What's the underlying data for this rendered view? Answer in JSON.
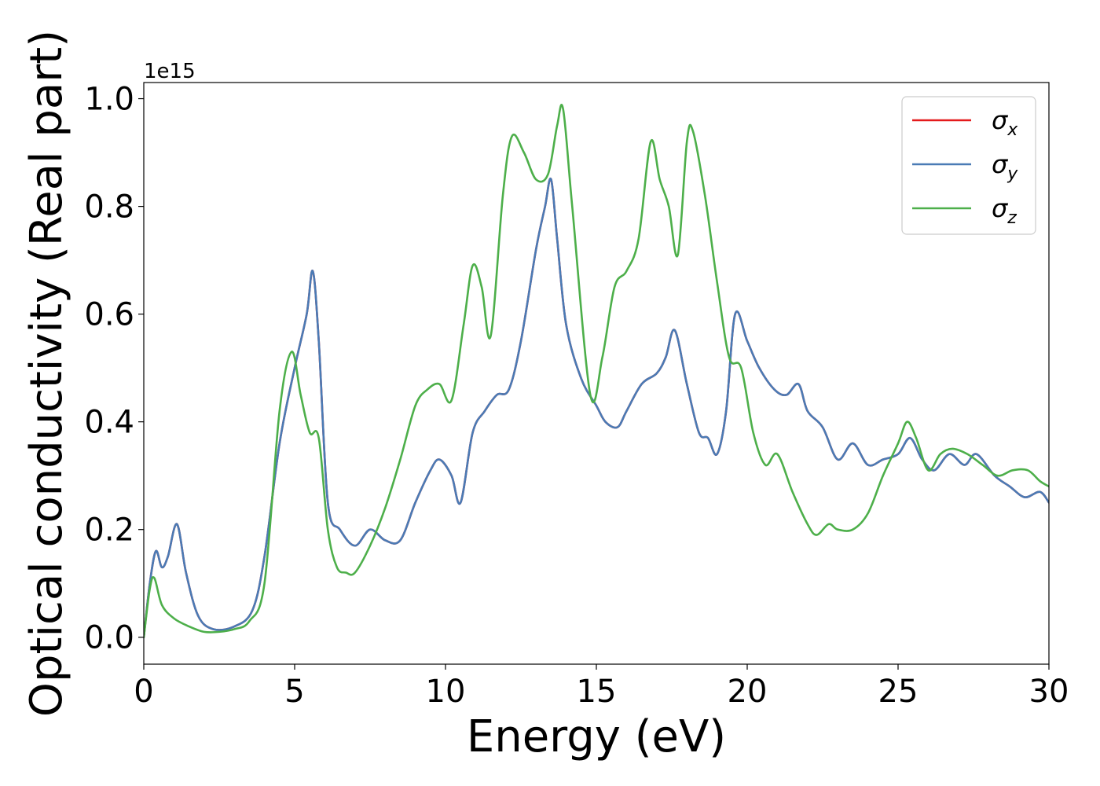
{
  "chart_data": {
    "type": "line",
    "xlabel": "Energy (eV)",
    "ylabel": "Optical conductivity (Real part)",
    "y_offset_label": "1e15",
    "xlim": [
      0,
      30
    ],
    "ylim": [
      -0.05,
      1.03
    ],
    "x_ticks": [
      0,
      5,
      10,
      15,
      20,
      25,
      30
    ],
    "x_tick_labels": [
      "0",
      "5",
      "10",
      "15",
      "20",
      "25",
      "30"
    ],
    "y_ticks": [
      0.0,
      0.2,
      0.4,
      0.6,
      0.8,
      1.0
    ],
    "y_tick_labels": [
      "0.0",
      "0.2",
      "0.4",
      "0.6",
      "0.8",
      "1.0"
    ],
    "grid": false,
    "legend_position": "top-right",
    "series": [
      {
        "name": "σ_x",
        "legend_symbol": "σ",
        "legend_subscript": "x",
        "color": "#e41a1c",
        "x": [
          0,
          0.2,
          0.4,
          0.6,
          0.8,
          1.1,
          1.4,
          1.8,
          2.3,
          3.0,
          3.6,
          4.0,
          4.5,
          5.0,
          5.4,
          5.6,
          5.8,
          6.1,
          6.5,
          7.0,
          7.5,
          8.0,
          8.5,
          9.0,
          9.5,
          9.8,
          10.2,
          10.5,
          10.9,
          11.3,
          11.7,
          12.1,
          12.5,
          13.0,
          13.3,
          13.5,
          13.7,
          14.0,
          14.5,
          15.0,
          15.3,
          15.7,
          16.0,
          16.5,
          17.0,
          17.3,
          17.6,
          18.0,
          18.4,
          18.7,
          19.0,
          19.3,
          19.6,
          20.0,
          20.4,
          20.9,
          21.3,
          21.7,
          22.0,
          22.5,
          23.0,
          23.5,
          24.0,
          24.5,
          25.0,
          25.4,
          25.8,
          26.2,
          26.7,
          27.2,
          27.6,
          28.2,
          28.7,
          29.2,
          29.7,
          30.0
        ],
        "values": [
          0.0,
          0.1,
          0.16,
          0.13,
          0.15,
          0.21,
          0.12,
          0.04,
          0.015,
          0.02,
          0.05,
          0.15,
          0.36,
          0.5,
          0.6,
          0.68,
          0.55,
          0.25,
          0.2,
          0.17,
          0.2,
          0.18,
          0.18,
          0.25,
          0.31,
          0.33,
          0.3,
          0.25,
          0.38,
          0.42,
          0.45,
          0.46,
          0.55,
          0.72,
          0.8,
          0.85,
          0.74,
          0.58,
          0.48,
          0.43,
          0.4,
          0.39,
          0.42,
          0.47,
          0.49,
          0.52,
          0.57,
          0.47,
          0.38,
          0.37,
          0.34,
          0.42,
          0.6,
          0.55,
          0.5,
          0.46,
          0.45,
          0.47,
          0.42,
          0.39,
          0.33,
          0.36,
          0.32,
          0.33,
          0.34,
          0.37,
          0.33,
          0.31,
          0.34,
          0.32,
          0.34,
          0.3,
          0.28,
          0.26,
          0.27,
          0.25
        ]
      },
      {
        "name": "σ_y",
        "legend_symbol": "σ",
        "legend_subscript": "y",
        "color": "#4a7bb5",
        "x": [
          0,
          0.2,
          0.4,
          0.6,
          0.8,
          1.1,
          1.4,
          1.8,
          2.3,
          3.0,
          3.6,
          4.0,
          4.5,
          5.0,
          5.4,
          5.6,
          5.8,
          6.1,
          6.5,
          7.0,
          7.5,
          8.0,
          8.5,
          9.0,
          9.5,
          9.8,
          10.2,
          10.5,
          10.9,
          11.3,
          11.7,
          12.1,
          12.5,
          13.0,
          13.3,
          13.5,
          13.7,
          14.0,
          14.5,
          15.0,
          15.3,
          15.7,
          16.0,
          16.5,
          17.0,
          17.3,
          17.6,
          18.0,
          18.4,
          18.7,
          19.0,
          19.3,
          19.6,
          20.0,
          20.4,
          20.9,
          21.3,
          21.7,
          22.0,
          22.5,
          23.0,
          23.5,
          24.0,
          24.5,
          25.0,
          25.4,
          25.8,
          26.2,
          26.7,
          27.2,
          27.6,
          28.2,
          28.7,
          29.2,
          29.7,
          30.0
        ],
        "values": [
          0.0,
          0.1,
          0.16,
          0.13,
          0.15,
          0.21,
          0.12,
          0.04,
          0.015,
          0.02,
          0.05,
          0.15,
          0.36,
          0.5,
          0.6,
          0.68,
          0.55,
          0.25,
          0.2,
          0.17,
          0.2,
          0.18,
          0.18,
          0.25,
          0.31,
          0.33,
          0.3,
          0.25,
          0.38,
          0.42,
          0.45,
          0.46,
          0.55,
          0.72,
          0.8,
          0.85,
          0.74,
          0.58,
          0.48,
          0.43,
          0.4,
          0.39,
          0.42,
          0.47,
          0.49,
          0.52,
          0.57,
          0.47,
          0.38,
          0.37,
          0.34,
          0.42,
          0.6,
          0.55,
          0.5,
          0.46,
          0.45,
          0.47,
          0.42,
          0.39,
          0.33,
          0.36,
          0.32,
          0.33,
          0.34,
          0.37,
          0.33,
          0.31,
          0.34,
          0.32,
          0.34,
          0.3,
          0.28,
          0.26,
          0.27,
          0.25
        ]
      },
      {
        "name": "σ_z",
        "legend_symbol": "σ",
        "legend_subscript": "z",
        "color": "#4daf4a",
        "x": [
          0,
          0.2,
          0.35,
          0.6,
          1.0,
          1.5,
          2.0,
          2.5,
          3.0,
          3.5,
          4.0,
          4.5,
          4.9,
          5.2,
          5.5,
          5.8,
          6.1,
          6.4,
          6.7,
          7.0,
          7.5,
          8.0,
          8.5,
          9.0,
          9.4,
          9.8,
          10.2,
          10.6,
          10.9,
          11.2,
          11.5,
          11.9,
          12.2,
          12.6,
          13.0,
          13.4,
          13.7,
          13.9,
          14.2,
          14.8,
          15.2,
          15.6,
          16.0,
          16.4,
          16.8,
          17.1,
          17.4,
          17.7,
          18.0,
          18.2,
          18.6,
          19.0,
          19.4,
          19.8,
          20.2,
          20.6,
          21.0,
          21.5,
          22.0,
          22.3,
          22.7,
          23.0,
          23.5,
          24.0,
          24.5,
          25.0,
          25.3,
          25.6,
          26.0,
          26.4,
          26.8,
          27.3,
          27.8,
          28.3,
          28.8,
          29.3,
          29.7,
          30.0
        ],
        "values": [
          0.0,
          0.09,
          0.11,
          0.06,
          0.035,
          0.02,
          0.01,
          0.01,
          0.015,
          0.03,
          0.1,
          0.42,
          0.53,
          0.45,
          0.38,
          0.37,
          0.2,
          0.13,
          0.12,
          0.12,
          0.17,
          0.24,
          0.33,
          0.43,
          0.46,
          0.47,
          0.44,
          0.58,
          0.69,
          0.65,
          0.56,
          0.82,
          0.93,
          0.9,
          0.85,
          0.86,
          0.95,
          0.98,
          0.8,
          0.45,
          0.52,
          0.65,
          0.68,
          0.74,
          0.92,
          0.85,
          0.8,
          0.71,
          0.92,
          0.94,
          0.82,
          0.66,
          0.52,
          0.5,
          0.38,
          0.32,
          0.34,
          0.27,
          0.21,
          0.19,
          0.21,
          0.2,
          0.2,
          0.23,
          0.3,
          0.36,
          0.4,
          0.37,
          0.31,
          0.34,
          0.35,
          0.34,
          0.32,
          0.3,
          0.31,
          0.31,
          0.29,
          0.28
        ]
      }
    ]
  }
}
